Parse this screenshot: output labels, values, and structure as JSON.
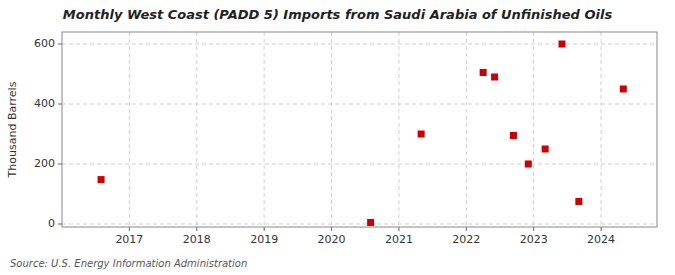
{
  "chart_data": {
    "type": "scatter",
    "title": "Monthly West Coast (PADD 5) Imports from Saudi Arabia of Unfinished Oils",
    "ylabel": "Thousand Barrels",
    "source": "Source: U.S. Energy Information Administration",
    "x": [
      2016.58,
      2020.58,
      2021.33,
      2022.25,
      2022.42,
      2022.7,
      2022.92,
      2023.17,
      2023.42,
      2023.67,
      2024.33
    ],
    "values": [
      148,
      5,
      300,
      505,
      490,
      295,
      200,
      250,
      600,
      75,
      450
    ],
    "color": "#CC0000",
    "marker": "square",
    "xlim": [
      2016.0,
      2024.83
    ],
    "ylim": [
      -10,
      640
    ],
    "xticks": [
      2017,
      2018,
      2019,
      2020,
      2021,
      2022,
      2023,
      2024
    ],
    "yticks": [
      0,
      200,
      400,
      600
    ],
    "grid": true
  }
}
